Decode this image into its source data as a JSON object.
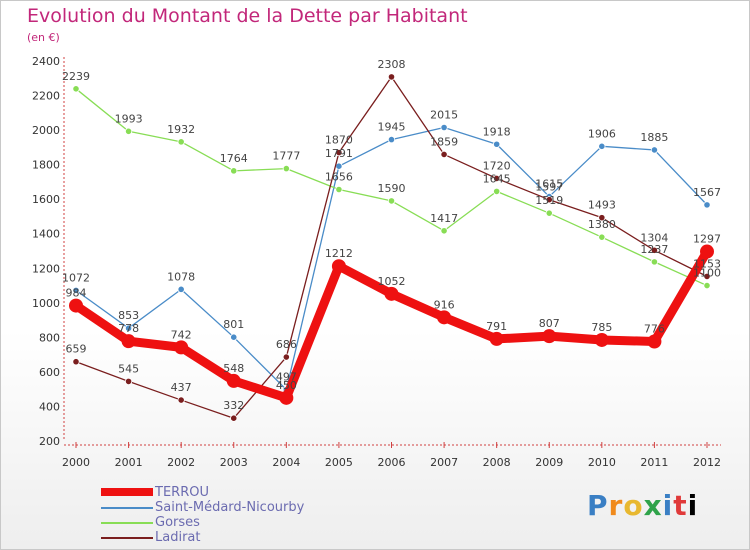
{
  "title": "Evolution du Montant de la Dette par Habitant",
  "subtitle": "(en €)",
  "logo_text": [
    "P",
    "r",
    "o",
    "x",
    "i",
    "t",
    "i"
  ],
  "chart_data": {
    "type": "line",
    "title": "Evolution du Montant de la Dette par Habitant",
    "subtitle": "(en €)",
    "xlabel": "",
    "ylabel": "",
    "ylim": [
      200,
      2400
    ],
    "yticks": [
      200,
      400,
      600,
      800,
      1000,
      1200,
      1400,
      1600,
      1800,
      2000,
      2200,
      2400
    ],
    "x": [
      "2000",
      "2001",
      "2002",
      "2003",
      "2004",
      "2005",
      "2006",
      "2007",
      "2008",
      "2009",
      "2010",
      "2011",
      "2012"
    ],
    "grid": false,
    "legend_position": "bottom-left",
    "series": [
      {
        "name": "TERROU",
        "color": "#ee1111",
        "values": [
          984,
          778,
          742,
          548,
          450,
          1212,
          1052,
          916,
          791,
          807,
          785,
          776,
          1297
        ]
      },
      {
        "name": "Saint-Médard-Nicourby",
        "color": "#4a8cc8",
        "values": [
          1072,
          853,
          1078,
          801,
          497,
          1791,
          1945,
          2015,
          1918,
          1615,
          1906,
          1885,
          1567
        ]
      },
      {
        "name": "Gorses",
        "color": "#88dd55",
        "values": [
          2239,
          1993,
          1932,
          1764,
          1777,
          1656,
          1590,
          1417,
          1645,
          1519,
          1380,
          1237,
          1100
        ]
      },
      {
        "name": "Ladirat",
        "color": "#7a1e1e",
        "values": [
          659,
          545,
          437,
          332,
          686,
          1870,
          2308,
          1859,
          1720,
          1597,
          1493,
          1304,
          1153
        ]
      }
    ]
  }
}
